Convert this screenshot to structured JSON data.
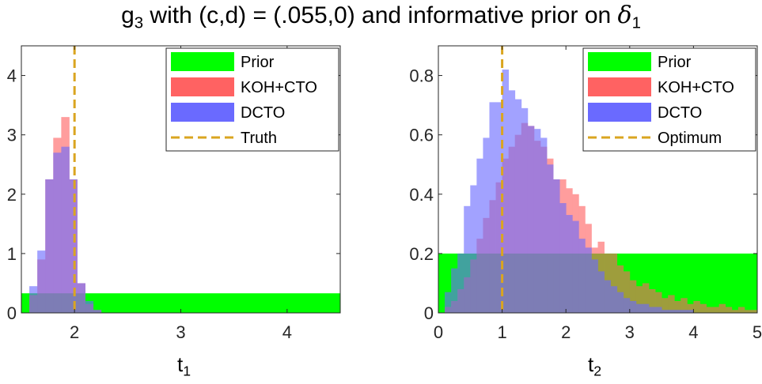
{
  "title": {
    "prefix": "g",
    "prefix_sub": "3",
    "middle": " with (c,d) = (.055,0) and informative prior on ",
    "symbol": "δ",
    "symbol_sub": "1"
  },
  "colors": {
    "prior": "#00ff00",
    "koh_cto": "#ff6262",
    "dcto": "#6a6aff",
    "overlap": "#5a2ab8",
    "truth_line": "#daa520"
  },
  "chart_data": [
    {
      "type": "bar",
      "subtype": "histogram",
      "xlabel": "t",
      "xlabel_sub": "1",
      "ylabel": "",
      "xlim": [
        1.5,
        4.5
      ],
      "ylim": [
        0,
        4.5
      ],
      "xticks": [
        "2",
        "3",
        "4"
      ],
      "yticks": [
        "0",
        "1",
        "2",
        "3",
        "4"
      ],
      "legend": [
        "Prior",
        "KOH+CTO",
        "DCTO",
        "Truth"
      ],
      "legend_position": "top-right",
      "bin_width": 0.075,
      "prior": {
        "x_range": [
          1.5,
          4.5
        ],
        "density": 0.33
      },
      "reference_line": {
        "name": "Truth",
        "x": 2
      },
      "series": [
        {
          "name": "KOH+CTO",
          "bins_start": 1.575,
          "values": [
            0.3,
            0.9,
            2.25,
            2.95,
            3.3,
            2.25,
            0.5,
            0.15,
            0.05
          ]
        },
        {
          "name": "DCTO",
          "bins_start": 1.575,
          "values": [
            0.45,
            1.05,
            2.25,
            2.7,
            2.8,
            2.25,
            0.5,
            0.2,
            0.05
          ]
        }
      ]
    },
    {
      "type": "bar",
      "subtype": "histogram",
      "xlabel": "t",
      "xlabel_sub": "2",
      "ylabel": "",
      "xlim": [
        0,
        5
      ],
      "ylim": [
        0,
        0.9
      ],
      "xticks": [
        "0",
        "1",
        "2",
        "3",
        "4",
        "5"
      ],
      "yticks": [
        "0",
        "0.2",
        "0.4",
        "0.6",
        "0.8"
      ],
      "legend": [
        "Prior",
        "KOH+CTO",
        "DCTO",
        "Optimum"
      ],
      "legend_position": "top-right",
      "bin_width": 0.1,
      "prior": {
        "x_range": [
          0,
          5
        ],
        "density": 0.2
      },
      "reference_line": {
        "name": "Optimum",
        "x": 1
      },
      "series": [
        {
          "name": "KOH+CTO",
          "bins_start": 0.1,
          "values": [
            0.02,
            0.04,
            0.08,
            0.12,
            0.18,
            0.25,
            0.32,
            0.38,
            0.44,
            0.52,
            0.56,
            0.6,
            0.64,
            0.63,
            0.58,
            0.56,
            0.52,
            0.45,
            0.45,
            0.42,
            0.4,
            0.36,
            0.3,
            0.22,
            0.24,
            0.2,
            0.2,
            0.16,
            0.14,
            0.11,
            0.09,
            0.1,
            0.08,
            0.07,
            0.05,
            0.06,
            0.04,
            0.05,
            0.03,
            0.04,
            0.03,
            0.02,
            0.02,
            0.03,
            0.02,
            0.01,
            0.02,
            0.01,
            0.01
          ]
        },
        {
          "name": "DCTO",
          "bins_start": 0.1,
          "values": [
            0.07,
            0.15,
            0.2,
            0.36,
            0.43,
            0.52,
            0.59,
            0.71,
            0.71,
            0.82,
            0.75,
            0.72,
            0.69,
            0.63,
            0.62,
            0.59,
            0.5,
            0.45,
            0.37,
            0.33,
            0.31,
            0.25,
            0.22,
            0.18,
            0.14,
            0.11,
            0.09,
            0.07,
            0.05,
            0.04,
            0.03,
            0.03,
            0.02,
            0.02,
            0.01,
            0.01,
            0.01,
            0.01,
            0.01,
            0.0,
            0.0,
            0.0,
            0.0,
            0.0,
            0.0,
            0.0,
            0.0,
            0.0,
            0.0
          ]
        }
      ]
    }
  ]
}
